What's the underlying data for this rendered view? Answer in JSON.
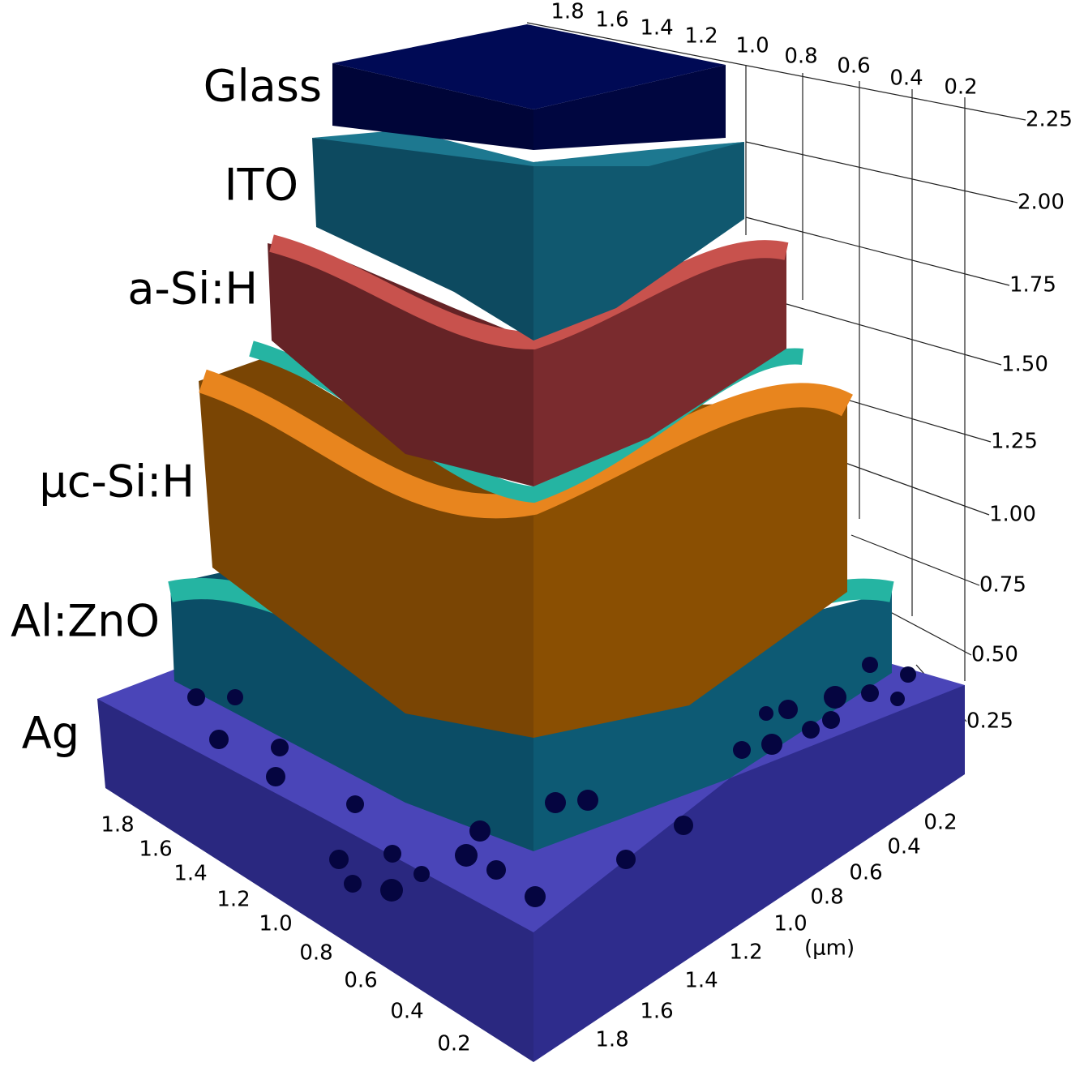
{
  "layers": [
    "Glass",
    "ITO",
    "a-Si:H",
    "μc-Si:H",
    "Al:ZnO",
    "Ag"
  ],
  "axes": {
    "z_ticks": [
      "2.25",
      "2.00",
      "1.75",
      "1.50",
      "1.25",
      "1.00",
      "0.75",
      "0.50",
      "0.25"
    ],
    "top_ticks": [
      "1.8",
      "1.6",
      "1.4",
      "1.2",
      "1.0",
      "0.8",
      "0.6",
      "0.4",
      "0.2"
    ],
    "left_ticks": [
      "1.8",
      "1.6",
      "1.4",
      "1.2",
      "1.0",
      "0.8",
      "0.6",
      "0.4",
      "0.2"
    ],
    "right_ticks": [
      "0.2",
      "0.4",
      "0.6",
      "0.8",
      "1.0",
      "1.2",
      "1.4",
      "1.6",
      "1.8"
    ],
    "unit": "(μm)"
  }
}
